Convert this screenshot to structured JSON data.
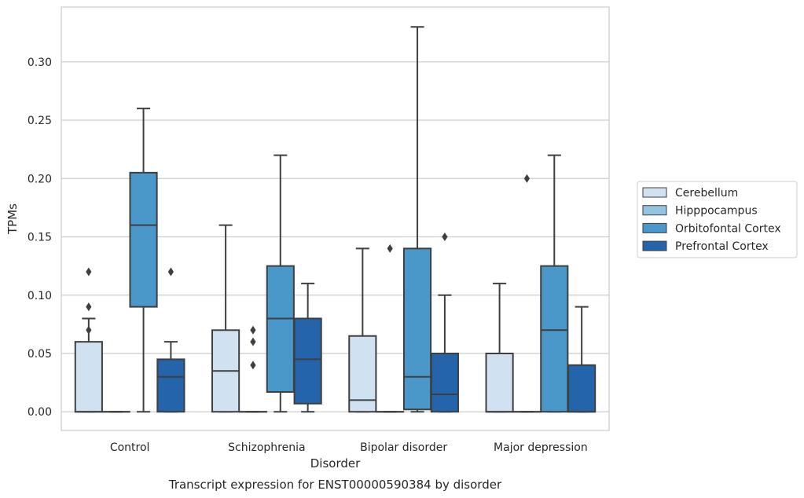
{
  "chart_data": {
    "type": "box",
    "title": "",
    "xlabel": "Disorder",
    "ylabel": "TPMs",
    "caption": "Transcript expression for ENST00000590384 by disorder",
    "categories": [
      "Control",
      "Schizophrenia",
      "Bipolar disorder",
      "Major depression"
    ],
    "yticks": [
      "0.00",
      "0.05",
      "0.10",
      "0.15",
      "0.20",
      "0.25",
      "0.30"
    ],
    "ylim": [
      -0.016,
      0.347
    ],
    "grid": true,
    "legend_position": "right",
    "series": [
      {
        "name": "Cerebellum",
        "color": "#d0e1f2",
        "boxes": [
          {
            "whislo": 0.0,
            "q1": 0.0,
            "med": 0.0,
            "q3": 0.06,
            "whishi": 0.08,
            "fliers": [
              0.07,
              0.09,
              0.12
            ]
          },
          {
            "whislo": 0.0,
            "q1": 0.0,
            "med": 0.035,
            "q3": 0.07,
            "whishi": 0.16,
            "fliers": []
          },
          {
            "whislo": 0.0,
            "q1": 0.0,
            "med": 0.01,
            "q3": 0.065,
            "whishi": 0.14,
            "fliers": []
          },
          {
            "whislo": 0.0,
            "q1": 0.0,
            "med": 0.0,
            "q3": 0.05,
            "whishi": 0.11,
            "fliers": []
          }
        ]
      },
      {
        "name": "Hipppocampus",
        "color": "#94c4df",
        "boxes": [
          {
            "whislo": 0.0,
            "q1": 0.0,
            "med": 0.0,
            "q3": 0.0,
            "whishi": 0.0,
            "fliers": []
          },
          {
            "whislo": 0.0,
            "q1": 0.0,
            "med": 0.0,
            "q3": 0.0,
            "whishi": 0.0,
            "fliers": [
              0.04,
              0.06,
              0.07
            ]
          },
          {
            "whislo": 0.0,
            "q1": 0.0,
            "med": 0.0,
            "q3": 0.0,
            "whishi": 0.0,
            "fliers": [
              0.14
            ]
          },
          {
            "whislo": 0.0,
            "q1": 0.0,
            "med": 0.0,
            "q3": 0.0,
            "whishi": 0.0,
            "fliers": [
              0.2
            ]
          }
        ]
      },
      {
        "name": "Orbitofontal Cortex",
        "color": "#4a98c9",
        "boxes": [
          {
            "whislo": 0.0,
            "q1": 0.09,
            "med": 0.16,
            "q3": 0.205,
            "whishi": 0.26,
            "fliers": []
          },
          {
            "whislo": 0.0,
            "q1": 0.017,
            "med": 0.08,
            "q3": 0.125,
            "whishi": 0.22,
            "fliers": []
          },
          {
            "whislo": 0.0,
            "q1": 0.002,
            "med": 0.03,
            "q3": 0.14,
            "whishi": 0.33,
            "fliers": []
          },
          {
            "whislo": 0.0,
            "q1": 0.0,
            "med": 0.07,
            "q3": 0.125,
            "whishi": 0.22,
            "fliers": []
          }
        ]
      },
      {
        "name": "Prefrontal Cortex",
        "color": "#2364aa",
        "boxes": [
          {
            "whislo": 0.0,
            "q1": 0.0,
            "med": 0.03,
            "q3": 0.045,
            "whishi": 0.06,
            "fliers": [
              0.12
            ]
          },
          {
            "whislo": 0.0,
            "q1": 0.007,
            "med": 0.045,
            "q3": 0.08,
            "whishi": 0.11,
            "fliers": []
          },
          {
            "whislo": 0.0,
            "q1": 0.0,
            "med": 0.015,
            "q3": 0.05,
            "whishi": 0.1,
            "fliers": [
              0.15
            ]
          },
          {
            "whislo": 0.0,
            "q1": 0.0,
            "med": 0.0,
            "q3": 0.04,
            "whishi": 0.09,
            "fliers": []
          }
        ]
      }
    ]
  }
}
